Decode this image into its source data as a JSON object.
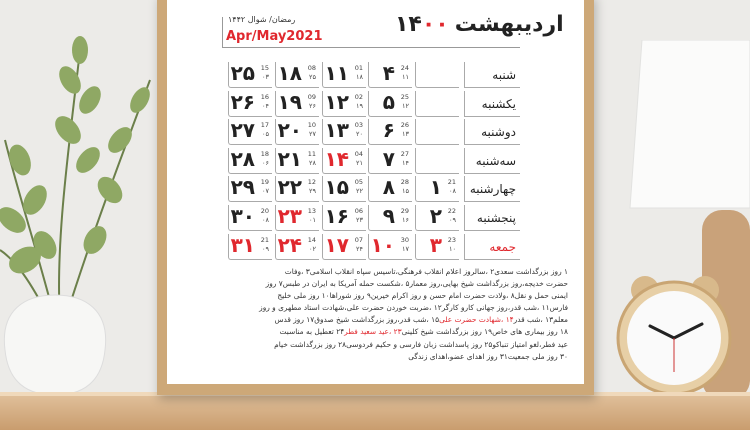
{
  "calendar": {
    "month": "اردیبهشت",
    "year_a": "۱۴",
    "year_b": "۰۰",
    "hijri_months": "رمضان/ شوال ۱۴۴۲",
    "gregorian_months": "Apr/May2021",
    "accent_color": "#e0282e",
    "weekdays": [
      {
        "name": "شنبه",
        "red": false
      },
      {
        "name": "یکشنبه",
        "red": false
      },
      {
        "name": "دوشنبه",
        "red": false
      },
      {
        "name": "سه‌شنبه",
        "red": false
      },
      {
        "name": "چهارشنبه",
        "red": false
      },
      {
        "name": "پنجشنبه",
        "red": false
      },
      {
        "name": "جمعه",
        "red": true
      }
    ],
    "weeks": [
      [
        null,
        null,
        null,
        null,
        {
          "d": "۱",
          "g": "21",
          "h": "۰۸"
        },
        {
          "d": "۲",
          "g": "22",
          "h": "۰۹"
        },
        {
          "d": "۳",
          "g": "23",
          "h": "۱۰",
          "red": true
        }
      ],
      [
        {
          "d": "۴",
          "g": "24",
          "h": "۱۱"
        },
        {
          "d": "۵",
          "g": "25",
          "h": "۱۲"
        },
        {
          "d": "۶",
          "g": "26",
          "h": "۱۳"
        },
        {
          "d": "۷",
          "g": "27",
          "h": "۱۴"
        },
        {
          "d": "۸",
          "g": "28",
          "h": "۱۵"
        },
        {
          "d": "۹",
          "g": "29",
          "h": "۱۶"
        },
        {
          "d": "۱۰",
          "g": "30",
          "h": "۱۷",
          "red": true
        }
      ],
      [
        {
          "d": "۱۱",
          "g": "01",
          "h": "۱۸"
        },
        {
          "d": "۱۲",
          "g": "02",
          "h": "۱۹"
        },
        {
          "d": "۱۳",
          "g": "03",
          "h": "۲۰"
        },
        {
          "d": "۱۴",
          "g": "04",
          "h": "۲۱",
          "red": true
        },
        {
          "d": "۱۵",
          "g": "05",
          "h": "۲۲"
        },
        {
          "d": "۱۶",
          "g": "06",
          "h": "۲۳"
        },
        {
          "d": "۱۷",
          "g": "07",
          "h": "۲۴",
          "red": true
        }
      ],
      [
        {
          "d": "۱۸",
          "g": "08",
          "h": "۲۵"
        },
        {
          "d": "۱۹",
          "g": "09",
          "h": "۲۶"
        },
        {
          "d": "۲۰",
          "g": "10",
          "h": "۲۷"
        },
        {
          "d": "۲۱",
          "g": "11",
          "h": "۲۸"
        },
        {
          "d": "۲۲",
          "g": "12",
          "h": "۲۹"
        },
        {
          "d": "۲۳",
          "g": "13",
          "h": "۰۱",
          "red": true
        },
        {
          "d": "۲۴",
          "g": "14",
          "h": "۰۲",
          "red": true
        }
      ],
      [
        {
          "d": "۲۵",
          "g": "15",
          "h": "۰۳"
        },
        {
          "d": "۲۶",
          "g": "16",
          "h": "۰۴"
        },
        {
          "d": "۲۷",
          "g": "17",
          "h": "۰۵"
        },
        {
          "d": "۲۸",
          "g": "18",
          "h": "۰۶"
        },
        {
          "d": "۲۹",
          "g": "19",
          "h": "۰۷"
        },
        {
          "d": "۳۰",
          "g": "20",
          "h": "۰۸"
        },
        {
          "d": "۳۱",
          "g": "21",
          "h": "۰۹",
          "red": true
        }
      ]
    ],
    "notes": [
      [
        {
          "t": "۱ روز بزرگداشت سعدی۲ ،سالروز اعلام انقلاب فرهنگی،تاسیس سپاه انقلاب اسلامی۳ ،وفات"
        }
      ],
      [
        {
          "t": "حضرت خدیجه،روز بزرگداشت شیخ بهایی،روز معمار۵ ،شکست حمله آمریکا به ایران در طبس۷ روز"
        }
      ],
      [
        {
          "t": "ایمنی حمل و نقل۸ ،ولادت حضرت امام حسن و روز اکرام خیرین۹ روز شوراها۱۰ روز ملی خلیج"
        }
      ],
      [
        {
          "t": "فارس۱۱ ،شب قدر،روز جهانی کارو کارگر۱۲ ،ضربت خوردن حضرت علی،شهادت استاد مطهری و روز"
        }
      ],
      [
        {
          "t": "معلم۱۳ ،شب قدر"
        },
        {
          "t": "۱۴ ،شهادت حضرت علی",
          "red": true
        },
        {
          "t": "۱۵ ،شب قدر،روز بزرگداشت شیخ صدوق۱۷ روز قدس"
        }
      ],
      [
        {
          "t": "۱۸ روز بیماری های خاص۱۹ روز بزرگداشت شیخ کلینی"
        },
        {
          "t": "۲۳ ،عید سعید فطر",
          "red": true
        },
        {
          "t": "۲۴ تعطیل به مناسبت"
        }
      ],
      [
        {
          "t": "عید فطر،لغو امتیاز تنباکو۲۵ روز پاسداشت زبان فارسی و حکیم فردوسی۲۸ روز بزرگداشت خیام"
        }
      ],
      [
        {
          "t": "۳۰ روز ملی جمعیت۳۱ روز اهدای عضو،اهدای زندگی"
        }
      ]
    ]
  },
  "scene": {
    "wall_color": "#ecebe8",
    "frame_color": "#cda878",
    "shelf_color": "#d6b083",
    "objects": [
      "potted-plant",
      "table-lamp",
      "alarm-clock"
    ]
  }
}
